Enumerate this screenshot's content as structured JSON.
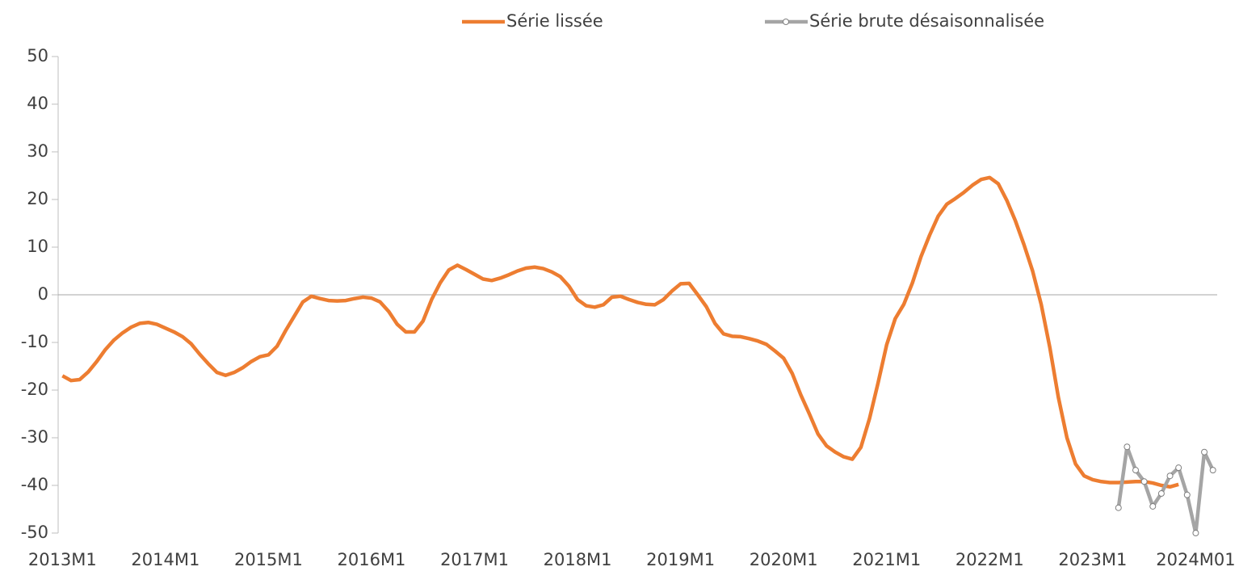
{
  "chart_data": {
    "type": "line",
    "legend": "top",
    "categories": [
      "2013M1",
      null,
      null,
      null,
      null,
      null,
      null,
      null,
      null,
      null,
      null,
      null,
      "2014M1",
      null,
      null,
      null,
      null,
      null,
      null,
      null,
      null,
      null,
      null,
      null,
      "2015M1",
      null,
      null,
      null,
      null,
      null,
      null,
      null,
      null,
      null,
      null,
      null,
      "2016M1",
      null,
      null,
      null,
      null,
      null,
      null,
      null,
      null,
      null,
      null,
      null,
      "2017M1",
      null,
      null,
      null,
      null,
      null,
      null,
      null,
      null,
      null,
      null,
      null,
      "2018M1",
      null,
      null,
      null,
      null,
      null,
      null,
      null,
      null,
      null,
      null,
      null,
      "2019M1",
      null,
      null,
      null,
      null,
      null,
      null,
      null,
      null,
      null,
      null,
      null,
      "2020M1",
      null,
      null,
      null,
      null,
      null,
      null,
      null,
      null,
      null,
      null,
      null,
      "2021M1",
      null,
      null,
      null,
      null,
      null,
      null,
      null,
      null,
      null,
      null,
      null,
      "2022M1",
      null,
      null,
      null,
      null,
      null,
      null,
      null,
      null,
      null,
      null,
      null,
      "2023M1",
      null,
      null,
      null,
      null,
      null,
      null,
      null,
      null,
      null,
      null,
      null,
      "2024M01",
      null,
      null
    ],
    "series": [
      {
        "name": "Série lissée",
        "color": "#ED7D31",
        "markers": false,
        "values": [
          -17,
          -18,
          -17.8,
          -16.2,
          -14,
          -11.5,
          -9.5,
          -8,
          -6.8,
          -6,
          -5.8,
          -6.2,
          -7,
          -7.8,
          -8.8,
          -10.3,
          -12.5,
          -14.5,
          -16.3,
          -16.9,
          -16.3,
          -15.3,
          -14,
          -13,
          -12.6,
          -10.8,
          -7.5,
          -4.5,
          -1.5,
          -0.3,
          -0.8,
          -1.2,
          -1.3,
          -1.2,
          -0.8,
          -0.5,
          -0.7,
          -1.5,
          -3.5,
          -6.2,
          -7.8,
          -7.8,
          -5.5,
          -1,
          2.5,
          5.2,
          6.2,
          5.3,
          4.3,
          3.3,
          3,
          3.5,
          4.2,
          5,
          5.6,
          5.8,
          5.5,
          4.8,
          3.8,
          1.8,
          -1,
          -2.3,
          -2.6,
          -2.1,
          -0.5,
          -0.3,
          -1,
          -1.6,
          -2,
          -2.1,
          -1,
          0.8,
          2.3,
          2.4,
          0,
          -2.5,
          -6,
          -8.2,
          -8.7,
          -8.8,
          -9.2,
          -9.7,
          -10.4,
          -11.8,
          -13.3,
          -16.5,
          -21,
          -25,
          -29.2,
          -31.7,
          -33,
          -34,
          -34.5,
          -32,
          -26,
          -18.5,
          -10.5,
          -5,
          -2,
          2.5,
          8,
          12.5,
          16.5,
          19,
          20.2,
          21.5,
          23,
          24.2,
          24.6,
          23.3,
          19.8,
          15.5,
          10.5,
          5,
          -2,
          -11,
          -21.5,
          -30,
          -35.5,
          -38,
          -38.8,
          -39.2,
          -39.4,
          -39.4,
          -39.3,
          -39.2,
          -39.2,
          -39.5,
          -40,
          -40.3,
          -39.8,
          null,
          null,
          null,
          null
        ]
      },
      {
        "name": "Série brute désaisonnalisée",
        "color": "#A5A5A5",
        "markers": true,
        "values": [
          null,
          null,
          null,
          null,
          null,
          null,
          null,
          null,
          null,
          null,
          null,
          null,
          null,
          null,
          null,
          null,
          null,
          null,
          null,
          null,
          null,
          null,
          null,
          null,
          null,
          null,
          null,
          null,
          null,
          null,
          null,
          null,
          null,
          null,
          null,
          null,
          null,
          null,
          null,
          null,
          null,
          null,
          null,
          null,
          null,
          null,
          null,
          null,
          null,
          null,
          null,
          null,
          null,
          null,
          null,
          null,
          null,
          null,
          null,
          null,
          null,
          null,
          null,
          null,
          null,
          null,
          null,
          null,
          null,
          null,
          null,
          null,
          null,
          null,
          null,
          null,
          null,
          null,
          null,
          null,
          null,
          null,
          null,
          null,
          null,
          null,
          null,
          null,
          null,
          null,
          null,
          null,
          null,
          null,
          null,
          null,
          null,
          null,
          null,
          null,
          null,
          null,
          null,
          null,
          null,
          null,
          null,
          null,
          null,
          null,
          null,
          null,
          null,
          null,
          null,
          null,
          null,
          null,
          null,
          null,
          null,
          null,
          null,
          -44.7,
          -31.9,
          -36.8,
          -39.2,
          -44.4,
          -41.7,
          -38,
          -36.3,
          -42,
          -50,
          -33,
          -36.8
        ]
      }
    ],
    "ylim": [
      -50,
      50
    ],
    "yticks": [
      -50,
      -40,
      -30,
      -20,
      -10,
      0,
      10,
      20,
      30,
      40,
      50
    ],
    "zero_line": true
  }
}
